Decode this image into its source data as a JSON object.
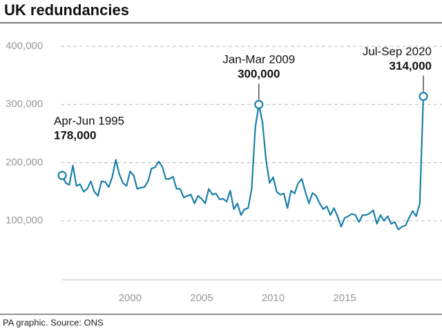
{
  "chart_data": {
    "type": "line",
    "title": "UK redundancies",
    "source": "PA graphic. Source: ONS",
    "x": [
      1995.25,
      1995.5,
      1995.75,
      1996,
      1996.25,
      1996.5,
      1996.75,
      1997,
      1997.25,
      1997.5,
      1997.75,
      1998,
      1998.25,
      1998.5,
      1998.75,
      1999,
      1999.25,
      1999.5,
      1999.75,
      2000,
      2000.25,
      2000.5,
      2000.75,
      2001,
      2001.25,
      2001.5,
      2001.75,
      2002,
      2002.25,
      2002.5,
      2002.75,
      2003,
      2003.25,
      2003.5,
      2003.75,
      2004,
      2004.25,
      2004.5,
      2004.75,
      2005,
      2005.25,
      2005.5,
      2005.75,
      2006,
      2006.25,
      2006.5,
      2006.75,
      2007,
      2007.25,
      2007.5,
      2007.75,
      2008,
      2008.25,
      2008.5,
      2008.75,
      2009,
      2009.25,
      2009.5,
      2009.75,
      2010,
      2010.25,
      2010.5,
      2010.75,
      2011,
      2011.25,
      2011.5,
      2011.75,
      2012,
      2012.25,
      2012.5,
      2012.75,
      2013,
      2013.25,
      2013.5,
      2013.75,
      2014,
      2014.25,
      2014.5,
      2014.75,
      2015,
      2015.25,
      2015.5,
      2015.75,
      2016,
      2016.25,
      2016.5,
      2016.75,
      2017,
      2017.25,
      2017.5,
      2017.75,
      2018,
      2018.25,
      2018.5,
      2018.75,
      2019,
      2019.25,
      2019.5,
      2019.75,
      2020,
      2020.25,
      2020.5
    ],
    "series": [
      {
        "name": "Redundancies",
        "color": "#1a7fa8",
        "values": [
          178000,
          165000,
          162000,
          195000,
          160000,
          163000,
          150000,
          155000,
          168000,
          150000,
          143000,
          168000,
          167000,
          158000,
          175000,
          205000,
          180000,
          165000,
          160000,
          185000,
          178000,
          155000,
          157000,
          158000,
          168000,
          190000,
          192000,
          202000,
          193000,
          172000,
          172000,
          176000,
          155000,
          155000,
          140000,
          143000,
          145000,
          130000,
          143000,
          138000,
          130000,
          155000,
          145000,
          147000,
          137000,
          138000,
          133000,
          152000,
          120000,
          130000,
          110000,
          120000,
          122000,
          155000,
          260000,
          300000,
          270000,
          205000,
          165000,
          175000,
          150000,
          145000,
          147000,
          122000,
          152000,
          147000,
          165000,
          172000,
          150000,
          130000,
          148000,
          143000,
          130000,
          120000,
          125000,
          110000,
          122000,
          108000,
          90000,
          105000,
          108000,
          112000,
          110000,
          98000,
          110000,
          110000,
          113000,
          118000,
          95000,
          110000,
          100000,
          108000,
          95000,
          98000,
          85000,
          90000,
          92000,
          105000,
          117000,
          108000,
          130000,
          314000
        ]
      }
    ],
    "annotations": [
      {
        "x": 1995.25,
        "text": "Apr-Jun 1995",
        "value_label": "178,000"
      },
      {
        "x": 2009,
        "text": "Jan-Mar 2009",
        "value_label": "300,000"
      },
      {
        "x": 2020.5,
        "text": "Jul-Sep 2020",
        "value_label": "314,000"
      }
    ],
    "xlim": [
      1995.25,
      2020.5
    ],
    "xticks": [
      2000,
      2005,
      2010,
      2015
    ],
    "ylim": [
      0,
      400000
    ],
    "yticks": [
      {
        "value": 100000,
        "label": "100,000"
      },
      {
        "value": 200000,
        "label": "200,000"
      },
      {
        "value": 300000,
        "label": "300,000"
      },
      {
        "value": 400000,
        "label": "400,000"
      }
    ],
    "grid": true
  }
}
